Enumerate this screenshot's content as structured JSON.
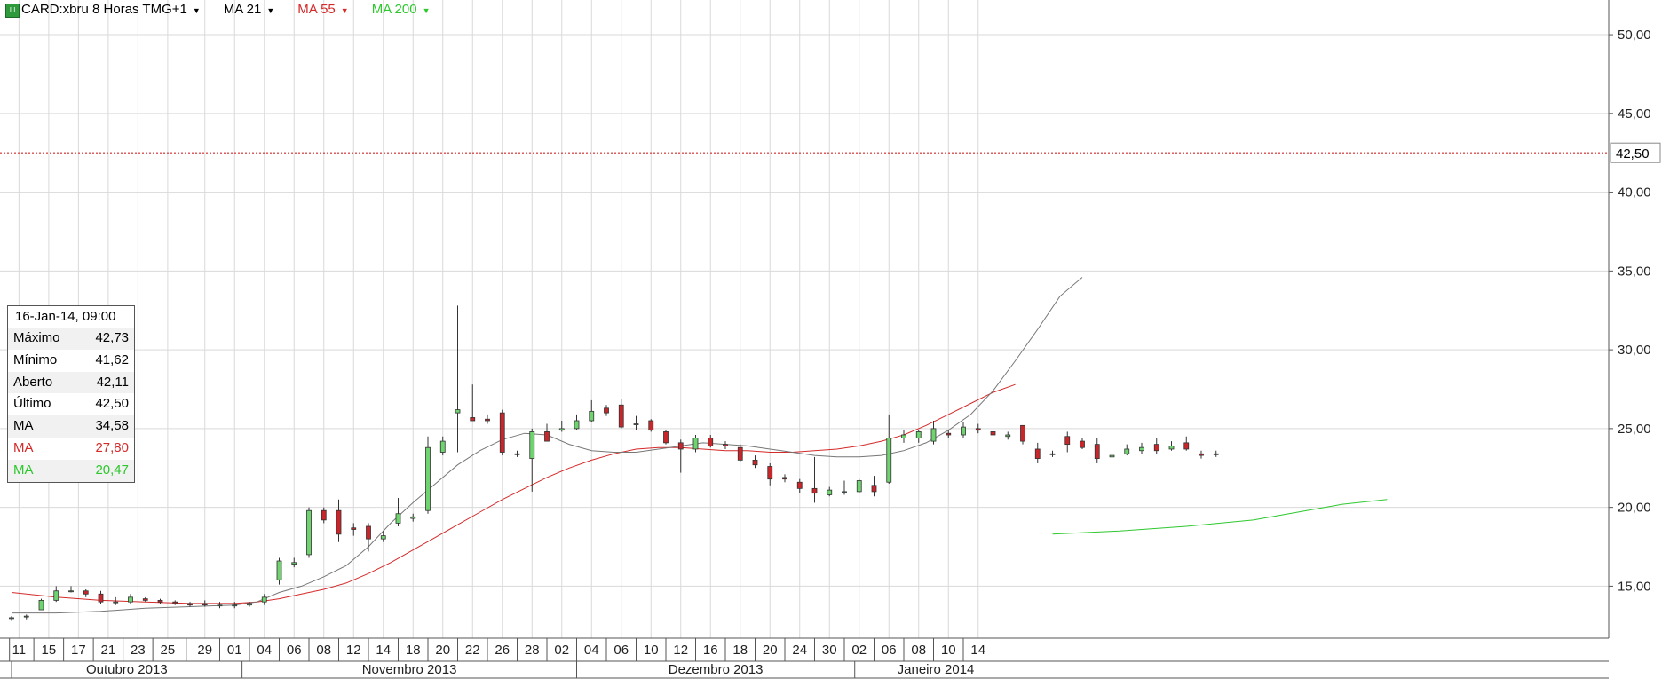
{
  "header": {
    "symbol_label": "CARD:xbru 8 Horas TMG+1",
    "indicators": [
      {
        "label": "MA 21",
        "color": "#000000"
      },
      {
        "label": "MA 55",
        "color": "#d42a2a"
      },
      {
        "label": "MA 200",
        "color": "#2ec82e"
      }
    ]
  },
  "info_panel": {
    "datetime": "16-Jan-14, 09:00",
    "rows": [
      {
        "label": "Máximo",
        "value": "42,73",
        "color": "#000000"
      },
      {
        "label": "Mínimo",
        "value": "41,62",
        "color": "#000000"
      },
      {
        "label": "Aberto",
        "value": "42,11",
        "color": "#000000"
      },
      {
        "label": "Último",
        "value": "42,50",
        "color": "#000000"
      },
      {
        "label": "MA",
        "value": "34,58",
        "color": "#000000"
      },
      {
        "label": "MA",
        "value": "27,80",
        "color": "#d42a2a"
      },
      {
        "label": "MA",
        "value": "20,47",
        "color": "#2ec82e"
      }
    ]
  },
  "chart_data": {
    "type": "candlestick",
    "ylim": [
      11.7,
      52.2
    ],
    "y_ticks": [
      15,
      20,
      25,
      30,
      35,
      40,
      45,
      50
    ],
    "y_tick_labels": [
      "15,00",
      "20,00",
      "25,00",
      "30,00",
      "35,00",
      "40,00",
      "45,00",
      "50,00"
    ],
    "last_price": 42.5,
    "last_price_label": "42,50",
    "x_day_labels": [
      "11",
      "15",
      "17",
      "21",
      "23",
      "25",
      "29",
      "01",
      "04",
      "06",
      "08",
      "12",
      "14",
      "18",
      "20",
      "22",
      "26",
      "28",
      "02",
      "04",
      "06",
      "10",
      "12",
      "16",
      "18",
      "20",
      "24",
      "30",
      "02",
      "06",
      "08",
      "10",
      "14"
    ],
    "x_day_label_index": [
      0.5,
      2.5,
      4.5,
      6.5,
      8.5,
      10.5,
      13,
      15,
      17,
      19,
      21,
      23,
      25,
      27,
      29,
      31,
      33,
      35,
      37,
      39,
      41,
      43,
      45,
      47,
      49,
      51,
      53,
      55,
      57,
      59,
      61,
      63,
      65
    ],
    "month_labels": [
      {
        "label": "Outubro 2013",
        "start": 0,
        "end": 15.5
      },
      {
        "label": "Novembro 2013",
        "start": 15.5,
        "end": 38
      },
      {
        "label": "Dezembro 2013",
        "start": 38,
        "end": 56.7
      },
      {
        "label": "Janeiro 2014",
        "start": 56.7,
        "end": 67.6
      }
    ],
    "candles": [
      {
        "o": 13.0,
        "h": 13.1,
        "l": 12.8,
        "c": 13.0
      },
      {
        "o": 13.1,
        "h": 13.2,
        "l": 12.9,
        "c": 13.1
      },
      {
        "o": 13.5,
        "h": 14.2,
        "l": 13.5,
        "c": 14.1
      },
      {
        "o": 14.1,
        "h": 15.0,
        "l": 14.0,
        "c": 14.7
      },
      {
        "o": 14.7,
        "h": 15.0,
        "l": 14.6,
        "c": 14.7
      },
      {
        "o": 14.7,
        "h": 14.8,
        "l": 14.3,
        "c": 14.5
      },
      {
        "o": 14.5,
        "h": 14.7,
        "l": 13.9,
        "c": 14.0
      },
      {
        "o": 14.0,
        "h": 14.3,
        "l": 13.8,
        "c": 14.0
      },
      {
        "o": 14.0,
        "h": 14.5,
        "l": 13.9,
        "c": 14.3
      },
      {
        "o": 14.2,
        "h": 14.3,
        "l": 14.0,
        "c": 14.1
      },
      {
        "o": 14.1,
        "h": 14.2,
        "l": 13.9,
        "c": 14.0
      },
      {
        "o": 14.0,
        "h": 14.1,
        "l": 13.8,
        "c": 13.9
      },
      {
        "o": 13.9,
        "h": 14.0,
        "l": 13.7,
        "c": 13.8
      },
      {
        "o": 13.9,
        "h": 14.1,
        "l": 13.7,
        "c": 13.8
      },
      {
        "o": 13.8,
        "h": 14.0,
        "l": 13.6,
        "c": 13.8
      },
      {
        "o": 13.8,
        "h": 14.0,
        "l": 13.6,
        "c": 13.8
      },
      {
        "o": 13.8,
        "h": 14.0,
        "l": 13.7,
        "c": 13.9
      },
      {
        "o": 14.0,
        "h": 14.5,
        "l": 13.8,
        "c": 14.3
      },
      {
        "o": 15.4,
        "h": 16.8,
        "l": 15.1,
        "c": 16.6
      },
      {
        "o": 16.4,
        "h": 16.8,
        "l": 16.2,
        "c": 16.5
      },
      {
        "o": 17.0,
        "h": 20.0,
        "l": 16.8,
        "c": 19.8
      },
      {
        "o": 19.8,
        "h": 20.0,
        "l": 19.0,
        "c": 19.2
      },
      {
        "o": 19.8,
        "h": 20.5,
        "l": 17.8,
        "c": 18.3
      },
      {
        "o": 18.7,
        "h": 19.0,
        "l": 18.2,
        "c": 18.6
      },
      {
        "o": 18.8,
        "h": 19.0,
        "l": 17.2,
        "c": 18.0
      },
      {
        "o": 18.0,
        "h": 18.5,
        "l": 17.8,
        "c": 18.2
      },
      {
        "o": 19.0,
        "h": 20.6,
        "l": 18.8,
        "c": 19.6
      },
      {
        "o": 19.3,
        "h": 19.6,
        "l": 19.1,
        "c": 19.4
      },
      {
        "o": 19.8,
        "h": 24.5,
        "l": 19.6,
        "c": 23.8
      },
      {
        "o": 23.5,
        "h": 24.5,
        "l": 23.3,
        "c": 24.2
      },
      {
        "o": 26.0,
        "h": 32.8,
        "l": 23.5,
        "c": 26.2
      },
      {
        "o": 25.7,
        "h": 27.8,
        "l": 25.5,
        "c": 25.5
      },
      {
        "o": 25.6,
        "h": 25.9,
        "l": 25.3,
        "c": 25.5
      },
      {
        "o": 26.0,
        "h": 26.2,
        "l": 23.3,
        "c": 23.5
      },
      {
        "o": 23.4,
        "h": 23.6,
        "l": 23.2,
        "c": 23.4
      },
      {
        "o": 23.1,
        "h": 25.0,
        "l": 21.0,
        "c": 24.8
      },
      {
        "o": 24.8,
        "h": 25.3,
        "l": 24.2,
        "c": 24.2
      },
      {
        "o": 24.9,
        "h": 25.5,
        "l": 24.8,
        "c": 25.0
      },
      {
        "o": 25.0,
        "h": 25.9,
        "l": 24.9,
        "c": 25.5
      },
      {
        "o": 25.5,
        "h": 26.8,
        "l": 25.4,
        "c": 26.1
      },
      {
        "o": 26.3,
        "h": 26.5,
        "l": 25.8,
        "c": 26.0
      },
      {
        "o": 26.5,
        "h": 26.9,
        "l": 25.0,
        "c": 25.1
      },
      {
        "o": 25.3,
        "h": 25.8,
        "l": 24.9,
        "c": 25.3
      },
      {
        "o": 25.5,
        "h": 25.6,
        "l": 24.8,
        "c": 24.9
      },
      {
        "o": 24.8,
        "h": 24.9,
        "l": 24.0,
        "c": 24.1
      },
      {
        "o": 24.1,
        "h": 24.3,
        "l": 22.2,
        "c": 23.7
      },
      {
        "o": 23.7,
        "h": 24.6,
        "l": 23.5,
        "c": 24.4
      },
      {
        "o": 24.4,
        "h": 24.6,
        "l": 23.8,
        "c": 23.9
      },
      {
        "o": 24.0,
        "h": 24.2,
        "l": 23.7,
        "c": 23.9
      },
      {
        "o": 23.8,
        "h": 24.0,
        "l": 22.9,
        "c": 23.0
      },
      {
        "o": 23.0,
        "h": 23.3,
        "l": 22.5,
        "c": 22.7
      },
      {
        "o": 22.6,
        "h": 22.8,
        "l": 21.4,
        "c": 21.8
      },
      {
        "o": 21.9,
        "h": 22.1,
        "l": 21.6,
        "c": 21.8
      },
      {
        "o": 21.6,
        "h": 21.8,
        "l": 20.9,
        "c": 21.2
      },
      {
        "o": 21.2,
        "h": 23.2,
        "l": 20.3,
        "c": 20.9
      },
      {
        "o": 20.8,
        "h": 21.3,
        "l": 20.7,
        "c": 21.1
      },
      {
        "o": 21.0,
        "h": 21.7,
        "l": 20.8,
        "c": 21.0
      },
      {
        "o": 21.0,
        "h": 21.8,
        "l": 20.9,
        "c": 21.7
      },
      {
        "o": 21.4,
        "h": 22.0,
        "l": 20.7,
        "c": 21.0
      },
      {
        "o": 21.6,
        "h": 25.9,
        "l": 21.5,
        "c": 24.4
      },
      {
        "o": 24.4,
        "h": 24.9,
        "l": 24.1,
        "c": 24.6
      },
      {
        "o": 24.4,
        "h": 24.9,
        "l": 24.1,
        "c": 24.8
      },
      {
        "o": 24.2,
        "h": 25.5,
        "l": 24.0,
        "c": 25.0
      },
      {
        "o": 24.7,
        "h": 24.9,
        "l": 24.4,
        "c": 24.6
      },
      {
        "o": 24.6,
        "h": 25.4,
        "l": 24.4,
        "c": 25.1
      },
      {
        "o": 25.0,
        "h": 25.3,
        "l": 24.7,
        "c": 24.9
      },
      {
        "o": 24.8,
        "h": 25.1,
        "l": 24.5,
        "c": 24.6
      },
      {
        "o": 24.5,
        "h": 24.8,
        "l": 24.3,
        "c": 24.6
      },
      {
        "o": 25.2,
        "h": 25.2,
        "l": 24.0,
        "c": 24.2
      },
      {
        "o": 23.7,
        "h": 24.1,
        "l": 22.8,
        "c": 23.1
      },
      {
        "o": 23.4,
        "h": 23.6,
        "l": 23.2,
        "c": 23.4
      },
      {
        "o": 24.5,
        "h": 24.8,
        "l": 23.5,
        "c": 24.0
      },
      {
        "o": 24.2,
        "h": 24.4,
        "l": 23.7,
        "c": 23.8
      },
      {
        "o": 24.0,
        "h": 24.4,
        "l": 22.8,
        "c": 23.1
      },
      {
        "o": 23.2,
        "h": 23.5,
        "l": 23.0,
        "c": 23.3
      },
      {
        "o": 23.4,
        "h": 24.0,
        "l": 23.3,
        "c": 23.7
      },
      {
        "o": 23.6,
        "h": 24.1,
        "l": 23.4,
        "c": 23.8
      },
      {
        "o": 24.0,
        "h": 24.4,
        "l": 23.4,
        "c": 23.6
      },
      {
        "o": 23.7,
        "h": 24.2,
        "l": 23.6,
        "c": 23.9
      },
      {
        "o": 24.1,
        "h": 24.5,
        "l": 23.6,
        "c": 23.7
      },
      {
        "o": 23.4,
        "h": 23.6,
        "l": 23.1,
        "c": 23.3
      },
      {
        "o": 23.4,
        "h": 23.6,
        "l": 23.2,
        "c": 23.4
      }
    ],
    "ma21": [
      [
        0,
        13.3
      ],
      [
        2,
        13.3
      ],
      [
        4,
        13.4
      ],
      [
        6,
        13.6
      ],
      [
        8,
        13.7
      ],
      [
        10,
        13.8
      ],
      [
        11,
        14.0
      ],
      [
        12,
        14.6
      ],
      [
        13,
        15.0
      ],
      [
        14,
        15.6
      ],
      [
        15,
        16.3
      ],
      [
        16,
        17.5
      ],
      [
        17,
        19.0
      ],
      [
        18,
        20.3
      ],
      [
        19,
        21.5
      ],
      [
        20,
        22.7
      ],
      [
        21,
        23.6
      ],
      [
        22,
        24.3
      ],
      [
        23,
        24.7
      ],
      [
        24,
        24.6
      ],
      [
        25,
        24.0
      ],
      [
        26,
        23.6
      ],
      [
        27,
        23.5
      ],
      [
        28,
        23.5
      ],
      [
        29,
        23.7
      ],
      [
        30,
        23.9
      ],
      [
        31,
        24.1
      ],
      [
        32,
        24.0
      ],
      [
        33,
        23.9
      ],
      [
        34,
        23.7
      ],
      [
        35,
        23.5
      ],
      [
        36,
        23.3
      ],
      [
        37,
        23.2
      ],
      [
        38,
        23.2
      ],
      [
        39,
        23.3
      ],
      [
        40,
        23.6
      ],
      [
        41,
        24.1
      ],
      [
        42,
        24.9
      ],
      [
        43,
        25.9
      ],
      [
        44,
        27.4
      ],
      [
        45,
        29.3
      ],
      [
        46,
        31.3
      ],
      [
        47,
        33.4
      ],
      [
        48,
        34.6
      ]
    ],
    "ma55": [
      [
        0,
        14.6
      ],
      [
        2,
        14.3
      ],
      [
        4,
        14.1
      ],
      [
        6,
        14.0
      ],
      [
        8,
        13.9
      ],
      [
        10,
        13.9
      ],
      [
        11,
        14.0
      ],
      [
        12,
        14.2
      ],
      [
        13,
        14.5
      ],
      [
        14,
        14.8
      ],
      [
        15,
        15.2
      ],
      [
        16,
        15.8
      ],
      [
        17,
        16.5
      ],
      [
        18,
        17.3
      ],
      [
        19,
        18.1
      ],
      [
        20,
        18.9
      ],
      [
        21,
        19.7
      ],
      [
        22,
        20.5
      ],
      [
        23,
        21.2
      ],
      [
        24,
        21.9
      ],
      [
        25,
        22.5
      ],
      [
        26,
        23.0
      ],
      [
        27,
        23.4
      ],
      [
        28,
        23.7
      ],
      [
        29,
        23.8
      ],
      [
        30,
        23.8
      ],
      [
        31,
        23.7
      ],
      [
        32,
        23.6
      ],
      [
        33,
        23.6
      ],
      [
        34,
        23.5
      ],
      [
        35,
        23.5
      ],
      [
        36,
        23.6
      ],
      [
        37,
        23.7
      ],
      [
        38,
        23.9
      ],
      [
        39,
        24.2
      ],
      [
        40,
        24.6
      ],
      [
        41,
        25.2
      ],
      [
        42,
        25.9
      ],
      [
        43,
        26.6
      ],
      [
        44,
        27.3
      ],
      [
        45,
        27.8
      ]
    ],
    "ma200": [
      [
        0,
        18.3
      ],
      [
        3,
        18.5
      ],
      [
        6,
        18.8
      ],
      [
        9,
        19.2
      ],
      [
        11,
        19.7
      ],
      [
        13,
        20.2
      ],
      [
        15,
        20.5
      ]
    ]
  }
}
